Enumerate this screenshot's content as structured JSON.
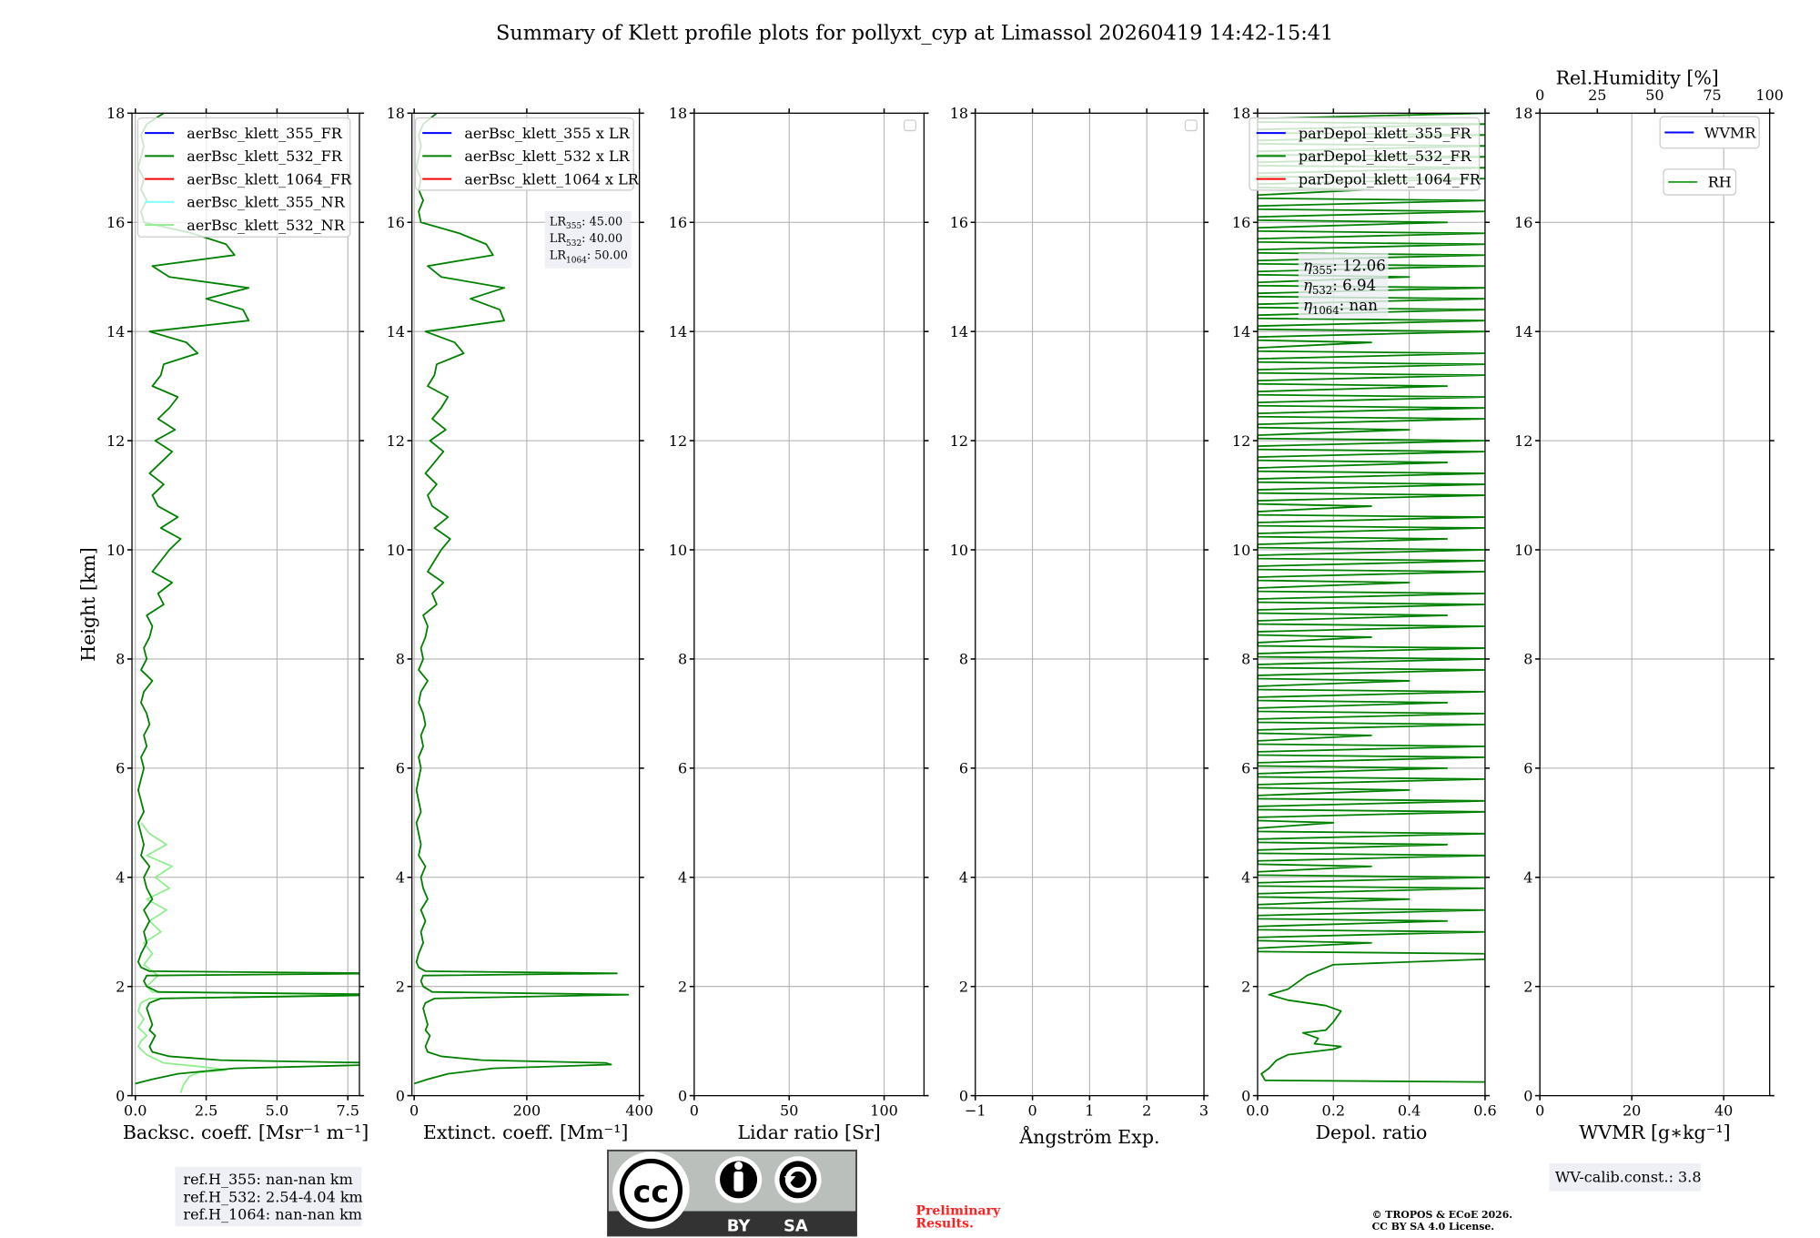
{
  "title": "Summary of Klett profile plots for pollyxt_cyp at Limassol 20260419 14:42-15:41",
  "ylabel": "Height [km]",
  "colors": {
    "fr355": "#0000ff",
    "fr532": "#008000",
    "fr1064": "#ff0000",
    "nr355": "#80ffff",
    "nr532": "#90ee90",
    "rh": "#2ca02c",
    "grid": "#b0b0b0",
    "preliminary": "#ff2020"
  },
  "chart_data": {
    "type": "line",
    "ylim": [
      0,
      18
    ],
    "yticks": [
      0,
      2,
      4,
      6,
      8,
      10,
      12,
      14,
      16,
      18
    ],
    "panels": [
      {
        "xlabel": "Backsc. coeff. [Msr⁻¹ m⁻¹]",
        "xlim": [
          -0.12,
          7.91
        ],
        "xticks": [
          0,
          2.5,
          5,
          7.5
        ],
        "xticklabels": [
          "0.0",
          "2.5",
          "5.0",
          "7.5"
        ],
        "legend": [
          "aerBsc_klett_355_FR",
          "aerBsc_klett_532_FR",
          "aerBsc_klett_1064_FR",
          "aerBsc_klett_355_NR",
          "aerBsc_klett_532_NR"
        ]
      },
      {
        "xlabel": "Extinct. coeff. [Mm⁻¹]",
        "xlim": [
          -4,
          400
        ],
        "xticks": [
          0,
          200,
          400
        ],
        "xticklabels": [
          "0",
          "200",
          "400"
        ],
        "legend": [
          "aerBsc_klett_355 x LR",
          "aerBsc_klett_532 x LR",
          "aerBsc_klett_1064 x LR"
        ]
      },
      {
        "xlabel": "Lidar ratio [Sr]",
        "xlim": [
          0,
          121
        ],
        "xticks": [
          0,
          50,
          100
        ],
        "xticklabels": [
          "0",
          "50",
          "100"
        ],
        "legend": []
      },
      {
        "xlabel": "Ångström Exp.",
        "xlim": [
          -1,
          3
        ],
        "xticks": [
          -1,
          0,
          1,
          2,
          3
        ],
        "xticklabels": [
          "−1",
          "0",
          "1",
          "2",
          "3"
        ],
        "legend": []
      },
      {
        "xlabel": "Depol. ratio",
        "xlim": [
          0,
          0.6
        ],
        "xticks": [
          0,
          0.2,
          0.4,
          0.6
        ],
        "xticklabels": [
          "0.0",
          "0.2",
          "0.4",
          "0.6"
        ],
        "legend": [
          "parDepol_klett_355_FR",
          "parDepol_klett_532_FR",
          "parDepol_klett_1064_FR"
        ]
      },
      {
        "xlabel": "WVMR [g∗kg⁻¹]",
        "xlim": [
          0,
          50
        ],
        "xticks": [
          0,
          20,
          40
        ],
        "xticklabels": [
          "0",
          "20",
          "40"
        ],
        "legend": [
          "WVMR",
          "RH"
        ],
        "top_axis": {
          "xlabel": "Rel.Humidity [%]",
          "xlim": [
            0,
            100
          ],
          "xticks": [
            0,
            25,
            50,
            75,
            100
          ],
          "xticklabels": [
            "0",
            "25",
            "50",
            "75",
            "100"
          ]
        }
      }
    ],
    "series": [
      {
        "name": "aerBsc_klett_532_NR",
        "panel": 0,
        "color": "nr532",
        "points": [
          [
            1.6,
            0.05
          ],
          [
            1.7,
            0.2
          ],
          [
            1.9,
            0.35
          ],
          [
            2.2,
            0.42
          ],
          [
            3.2,
            0.47
          ],
          [
            2.5,
            0.52
          ],
          [
            1.0,
            0.6
          ],
          [
            0.4,
            0.75
          ],
          [
            0.1,
            0.9
          ],
          [
            0.2,
            1.0
          ],
          [
            0.4,
            1.1
          ],
          [
            0.1,
            1.25
          ],
          [
            0.3,
            1.4
          ],
          [
            0.1,
            1.55
          ],
          [
            0.2,
            1.7
          ],
          [
            0.5,
            1.78
          ],
          [
            8.5,
            1.85
          ],
          [
            0.6,
            1.9
          ],
          [
            0.4,
            2.0
          ],
          [
            0.8,
            2.2
          ],
          [
            0.3,
            2.4
          ]
        ],
        "upper": {
          "h_start": 2.6,
          "h_step": 0.2,
          "values": [
            0.6,
            0.3,
            0.9,
            0.5,
            1.1,
            0.4,
            1.2,
            0.7,
            1.3,
            0.4,
            1.1,
            0.5,
            0.2
          ]
        }
      },
      {
        "name": "aerBsc_klett_532_FR",
        "panel": 0,
        "color": "fr532",
        "points": [
          [
            0,
            0.22
          ],
          [
            0.6,
            0.3
          ],
          [
            1.5,
            0.4
          ],
          [
            3.5,
            0.5
          ],
          [
            8.75,
            0.57
          ],
          [
            8.5,
            0.6
          ],
          [
            3,
            0.65
          ],
          [
            1.2,
            0.72
          ],
          [
            0.6,
            0.8
          ],
          [
            0.5,
            0.9
          ],
          [
            0.6,
            1.0
          ],
          [
            0.7,
            1.1
          ],
          [
            0.5,
            1.2
          ],
          [
            0.6,
            1.3
          ],
          [
            0.5,
            1.45
          ],
          [
            0.4,
            1.6
          ],
          [
            0.5,
            1.7
          ],
          [
            0.9,
            1.78
          ],
          [
            9.5,
            1.85
          ],
          [
            0.8,
            1.9
          ],
          [
            0.4,
            2.0
          ],
          [
            0.3,
            2.1
          ],
          [
            0.4,
            2.2
          ],
          [
            9,
            2.24
          ],
          [
            0.5,
            2.28
          ],
          [
            0.2,
            2.35
          ],
          [
            0.1,
            2.45
          ]
        ],
        "upper": {
          "h_start": 2.6,
          "h_step": 0.2,
          "values": [
            0.2,
            0.4,
            0.3,
            0.5,
            0.3,
            0.6,
            0.4,
            0.3,
            0.5,
            0.2,
            0.3,
            0.2,
            0.1,
            0.3,
            0.2,
            0.1,
            0.2,
            0.3,
            0.2,
            0.4,
            0.3,
            0.5,
            0.4,
            0.2,
            0.3,
            0.6,
            0.2,
            0.4,
            0.3,
            0.5,
            0.6,
            0.4,
            1.0,
            0.8,
            1.3,
            0.6,
            0.9,
            1.2,
            1.6,
            0.9,
            1.5,
            0.8,
            0.6,
            1.0,
            0.5,
            0.9,
            1.3,
            0.7,
            1.4,
            0.8,
            1.2,
            1.5,
            0.6,
            0.9,
            1.0,
            2.2,
            1.8,
            0.5,
            4.0,
            3.8,
            2.5,
            4.0,
            1.2,
            0.6,
            3.5,
            3.2,
            2.0,
            0.3,
            0.2,
            0.4,
            0.2,
            0.3,
            0.1,
            0.2,
            0.3,
            0.2,
            0.4,
            1.0
          ]
        }
      },
      {
        "name": "aerBsc_klett_532 x LR",
        "panel": 1,
        "color": "fr532",
        "derived_from": "aerBsc_klett_532_FR",
        "factor": 40
      },
      {
        "name": "parDepol_klett_532_FR",
        "panel": 4,
        "color": "fr532",
        "style": "spikes",
        "points": [
          [
            0.6,
            0.25
          ],
          [
            0.02,
            0.28
          ],
          [
            0.01,
            0.4
          ],
          [
            0.03,
            0.5
          ],
          [
            0.05,
            0.65
          ],
          [
            0.08,
            0.75
          ],
          [
            0.2,
            0.85
          ],
          [
            0.22,
            0.9
          ],
          [
            0.15,
            0.95
          ],
          [
            0.16,
            1.05
          ],
          [
            0.12,
            1.15
          ],
          [
            0.18,
            1.2
          ],
          [
            0.2,
            1.35
          ],
          [
            0.22,
            1.55
          ],
          [
            0.18,
            1.65
          ],
          [
            0.08,
            1.75
          ],
          [
            0.03,
            1.85
          ],
          [
            0.08,
            1.95
          ],
          [
            0.1,
            2.05
          ],
          [
            0.13,
            2.2
          ],
          [
            0.2,
            2.4
          ],
          [
            0.6,
            2.5
          ]
        ],
        "upper": {
          "h_start": 2.6,
          "h_step": 0.2,
          "values": [
            0.6,
            0.3,
            0.6,
            0.5,
            0.6,
            0.4,
            0.6,
            0.6,
            0.3,
            0.6,
            0.5,
            0.6,
            0.2,
            0.6,
            0.6,
            0.4,
            0.6,
            0.5,
            0.6,
            0.6,
            0.3,
            0.6,
            0.6,
            0.5,
            0.6,
            0.4,
            0.6,
            0.6,
            0.6,
            0.3,
            0.6,
            0.5,
            0.6,
            0.6,
            0.4,
            0.6,
            0.6,
            0.6,
            0.5,
            0.6,
            0.6,
            0.3,
            0.6,
            0.6,
            0.6,
            0.5,
            0.6,
            0.6,
            0.4,
            0.6,
            0.6,
            0.6,
            0.5,
            0.6,
            0.6,
            0.6,
            0.3,
            0.6,
            0.6,
            0.6,
            0.6,
            0.6,
            0.4,
            0.6,
            0.6,
            0.6,
            0.6,
            0.5,
            0.6,
            0.6,
            0.3,
            0.6,
            0.6,
            0.6,
            0.6,
            0.6,
            0.6,
            0.6
          ]
        }
      }
    ]
  },
  "lidar_ratios": [
    {
      "label": "LR",
      "sub": "355",
      "value": "45.00"
    },
    {
      "label": "LR",
      "sub": "532",
      "value": "40.00"
    },
    {
      "label": "LR",
      "sub": "1064",
      "value": "50.00"
    }
  ],
  "eta": [
    {
      "label": "η",
      "sub": "355",
      "value": "12.06"
    },
    {
      "label": "η",
      "sub": "532",
      "value": "6.94"
    },
    {
      "label": "η",
      "sub": "1064",
      "value": "nan"
    }
  ],
  "ref_heights": [
    "ref.H_355: nan-nan km",
    "ref.H_532: 2.54-4.04 km",
    "ref.H_1064: nan-nan km"
  ],
  "wv_calib": "WV-calib.const.: 3.8",
  "license_logo": {
    "cc": "cc",
    "by": "BY",
    "sa": "SA"
  },
  "preliminary": [
    "Preliminary",
    "Results."
  ],
  "copyright": [
    "© TROPOS & ECoE 2026.",
    "CC BY SA 4.0 License."
  ]
}
